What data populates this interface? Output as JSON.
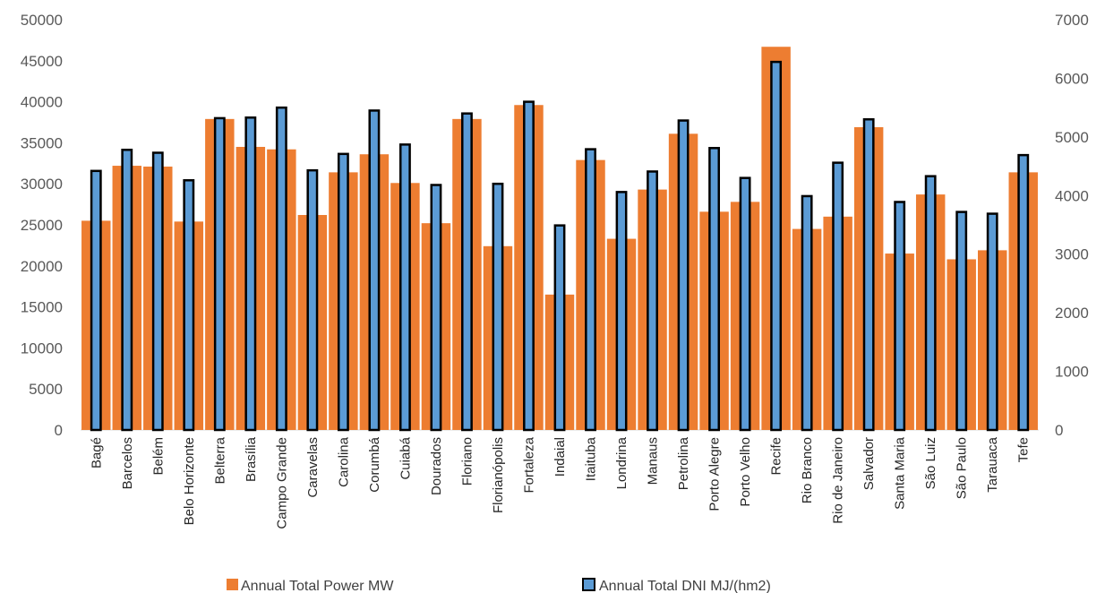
{
  "chart_data": {
    "type": "bar",
    "categories": [
      "Bagé",
      "Barcelos",
      "Belém",
      "Belo Horizonte",
      "Belterra",
      "Brasília",
      "Campo Grande",
      "Caravelas",
      "Carolina",
      "Corumbá",
      "Cuiabá",
      "Dourados",
      "Floriano",
      "Florianópolis",
      "Fortaleza",
      "Indaial",
      "Itaituba",
      "Londrina",
      "Manaus",
      "Petrolina",
      "Porto Alegre",
      "Porto Velho",
      "Recife",
      "Rio Branco",
      "Rio de Janeiro",
      "Salvador",
      "Santa Maria",
      "São Luiz",
      "São Paulo",
      "Tarauaca",
      "Tefe"
    ],
    "series": [
      {
        "name": "Annual Total Power MW",
        "axis": "left",
        "color": "#ED7D31",
        "values": [
          25500,
          32200,
          32100,
          25400,
          37900,
          34500,
          34200,
          26200,
          31400,
          33600,
          30100,
          25200,
          37900,
          22400,
          39600,
          16500,
          32900,
          23300,
          29300,
          36100,
          26600,
          27800,
          46700,
          24500,
          26000,
          36900,
          21500,
          28700,
          20800,
          21900,
          31400
        ]
      },
      {
        "name": "Annual Total DNI MJ/(hm2)",
        "axis": "right",
        "color": "#5B9BD5",
        "outline": "#000000",
        "values": [
          4420,
          4780,
          4730,
          4260,
          5320,
          5330,
          5500,
          4430,
          4710,
          5450,
          4870,
          4180,
          5400,
          4200,
          5600,
          3490,
          4790,
          4060,
          4410,
          5280,
          4810,
          4300,
          6280,
          3990,
          4560,
          5300,
          3890,
          4330,
          3720,
          3690,
          4690
        ]
      }
    ],
    "y_left": {
      "ticks": [
        0,
        5000,
        10000,
        15000,
        20000,
        25000,
        30000,
        35000,
        40000,
        45000,
        50000
      ],
      "ylim": [
        0,
        50000
      ]
    },
    "y_right": {
      "ticks": [
        0,
        1000,
        2000,
        3000,
        4000,
        5000,
        6000,
        7000
      ],
      "ylim": [
        0,
        7000
      ]
    },
    "grid": false,
    "legend_position": "bottom"
  }
}
